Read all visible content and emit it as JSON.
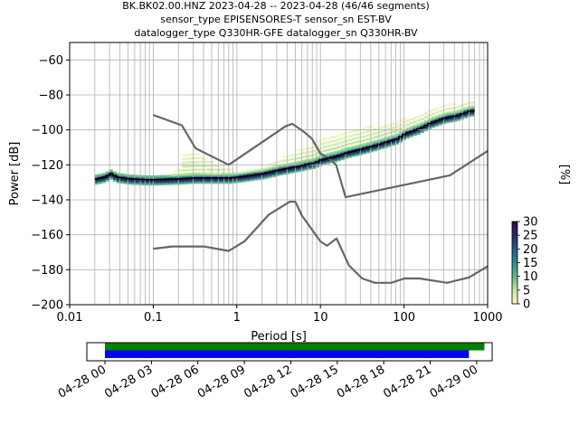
{
  "title_lines": [
    "BK.BK02.00.HNZ   2023-04-28 -- 2023-04-28  (46/46 segments)",
    "sensor_type EPISENSORES-T sensor_sn EST-BV",
    "datalogger_type Q330HR-GFE datalogger_sn Q330HR-BV"
  ],
  "colorbar": {
    "label": "[%]",
    "ticks": [
      "0",
      "5",
      "10",
      "15",
      "20",
      "25",
      "30"
    ],
    "range": [
      0,
      30
    ],
    "colors": [
      "#fefcce",
      "#c4e69a",
      "#5fba80",
      "#2a8d8c",
      "#1f5f8e",
      "#34266a",
      "#2b0d3c"
    ]
  },
  "chart_data": [
    {
      "type": "heatmap",
      "subtype": "probabilistic power spectral density",
      "xlabel": "Period [s]",
      "ylabel": "Power [dB]",
      "xscale": "log",
      "xlim": [
        0.01,
        1000
      ],
      "ylim": [
        -200,
        -50
      ],
      "xticks": [
        0.01,
        0.1,
        1,
        10,
        100,
        1000
      ],
      "xtick_labels": [
        "0.01",
        "0.1",
        "1",
        "10",
        "100",
        "1000"
      ],
      "yticks": [
        -200,
        -180,
        -160,
        -140,
        -120,
        -100,
        -80,
        -60
      ],
      "ytick_labels": [
        "−200",
        "−180",
        "−160",
        "−140",
        "−120",
        "−100",
        "−80",
        "−60"
      ],
      "grid": true,
      "mode_curve": {
        "period": [
          0.02,
          0.025,
          0.03,
          0.035,
          0.05,
          0.08,
          0.1,
          0.2,
          0.3,
          0.5,
          0.8,
          1,
          2,
          3,
          5,
          8,
          10,
          15,
          20,
          30,
          50,
          80,
          100,
          150,
          200,
          300,
          400,
          600,
          700
        ],
        "power": [
          -128,
          -127,
          -125,
          -127,
          -128,
          -128.5,
          -128.5,
          -128,
          -127.5,
          -127.5,
          -127.5,
          -127,
          -125,
          -123,
          -121,
          -119,
          -117,
          -115,
          -113,
          -111,
          -108,
          -105,
          -102,
          -99,
          -96,
          -93,
          -92,
          -89,
          -89
        ]
      },
      "spread_curves": [
        {
          "period": [
            0.2,
            0.3,
            0.5,
            0.8,
            1,
            2,
            3,
            5,
            8,
            10,
            15,
            20,
            30,
            50,
            80,
            100,
            150,
            200,
            300,
            400,
            600,
            700
          ],
          "power": [
            -115,
            -112,
            -118,
            -122,
            -124,
            -121,
            -117,
            -112,
            -107,
            -105,
            -103,
            -101,
            -99,
            -97,
            -95,
            -93,
            -90,
            -88,
            -86,
            -85,
            -83,
            -82
          ]
        },
        {
          "period": [
            0.15,
            0.2,
            0.3,
            0.5,
            0.8,
            1
          ],
          "power": [
            -125,
            -122,
            -121,
            -124,
            -126,
            -127
          ]
        }
      ],
      "nhnm": {
        "period": [
          0.1,
          0.22,
          0.32,
          0.8,
          3.8,
          4.6,
          6.3,
          7.9,
          10,
          12.8,
          15.4,
          20,
          354.8,
          1000
        ],
        "power": [
          -91.5,
          -97.4,
          -110.5,
          -120,
          -98,
          -96.5,
          -101,
          -105,
          -113.5,
          -116.5,
          -120,
          -138.5,
          -126,
          -112
        ]
      },
      "nlnm": {
        "period": [
          0.1,
          0.17,
          0.4,
          0.8,
          1.24,
          2.4,
          4.3,
          5,
          6,
          10,
          12,
          15.6,
          21.9,
          31.6,
          45,
          70,
          101,
          154,
          328,
          600,
          1000
        ],
        "power": [
          -168,
          -166.7,
          -166.7,
          -169.2,
          -163.7,
          -148.6,
          -141.1,
          -141.1,
          -149,
          -163.8,
          -166.2,
          -162.1,
          -177.5,
          -185,
          -187.5,
          -187.5,
          -185,
          -185,
          -187.5,
          -184.4,
          -178
        ]
      }
    },
    {
      "type": "timeline",
      "xlim": [
        "2023-04-28 00",
        "2023-04-29 01"
      ],
      "xticks": [
        "04-28 00",
        "04-28 03",
        "04-28 06",
        "04-28 09",
        "04-28 12",
        "04-28 15",
        "04-28 18",
        "04-28 21",
        "04-29 00"
      ],
      "bars": [
        {
          "color": "#008000",
          "start": "2023-04-28 00:00",
          "end": "2023-04-29 00:30"
        },
        {
          "color": "#0000ff",
          "start": "2023-04-28 00:00",
          "end": "2023-04-28 23:30"
        }
      ]
    }
  ]
}
